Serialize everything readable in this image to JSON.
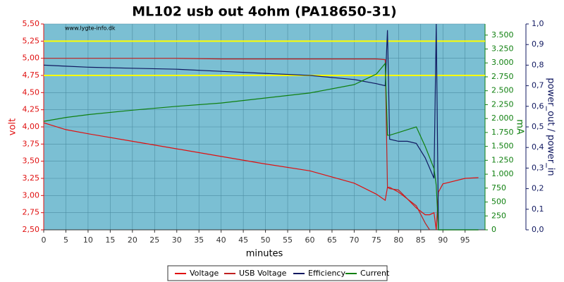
{
  "chart_data": {
    "type": "line",
    "title": "ML102 usb out 4ohm (PA18650-31)",
    "watermark": "www.lygte-info.dk",
    "xlabel": "minutes",
    "ylabel": "volt",
    "y2label": "mA",
    "y3label": "power_out / power_in",
    "background": "#7bbfd3",
    "grid": true,
    "legend": "bottom",
    "xlim": [
      0,
      99.5
    ],
    "xticks": [
      0,
      5,
      10,
      15,
      20,
      25,
      30,
      35,
      40,
      45,
      50,
      55,
      60,
      65,
      70,
      75,
      80,
      85,
      90,
      95
    ],
    "ylim": [
      2.5,
      5.5
    ],
    "yticks": [
      {
        "value": 2.5,
        "label": "2,50"
      },
      {
        "value": 2.75,
        "label": "2,75"
      },
      {
        "value": 3,
        "label": "3,00"
      },
      {
        "value": 3.25,
        "label": "3,25"
      },
      {
        "value": 3.5,
        "label": "3,50"
      },
      {
        "value": 3.75,
        "label": "3,75"
      },
      {
        "value": 4,
        "label": "4,00"
      },
      {
        "value": 4.25,
        "label": "4,25"
      },
      {
        "value": 4.5,
        "label": "4,50"
      },
      {
        "value": 4.75,
        "label": "4,75"
      },
      {
        "value": 5,
        "label": "5,00"
      },
      {
        "value": 5.25,
        "label": "5,25"
      },
      {
        "value": 5.5,
        "label": "5,50"
      }
    ],
    "y2lim": [
      0,
      3700
    ],
    "y2ticks": [
      0,
      250,
      500,
      750,
      {
        "value": 1000,
        "label": "1.000"
      },
      {
        "value": 1250,
        "label": "1.250"
      },
      {
        "value": 1500,
        "label": "1.500"
      },
      {
        "value": 1750,
        "label": "1.750"
      },
      {
        "value": 2000,
        "label": "2.000"
      },
      {
        "value": 2250,
        "label": "2.250"
      },
      {
        "value": 2500,
        "label": "2.500"
      },
      {
        "value": 2750,
        "label": "2.750"
      },
      {
        "value": 3000,
        "label": "3.000"
      },
      {
        "value": 3250,
        "label": "3.250"
      },
      {
        "value": 3500,
        "label": "3.500"
      }
    ],
    "y3lim": [
      0,
      1
    ],
    "y3ticks": [
      {
        "value": 0,
        "label": "0,0"
      },
      {
        "value": 0.1,
        "label": "0,1"
      },
      {
        "value": 0.2,
        "label": "0,2"
      },
      {
        "value": 0.3,
        "label": "0,3"
      },
      {
        "value": 0.4,
        "label": "0,4"
      },
      {
        "value": 0.5,
        "label": "0,5"
      },
      {
        "value": 0.6,
        "label": "0,6"
      },
      {
        "value": 0.7,
        "label": "0,7"
      },
      {
        "value": 0.8,
        "label": "0,8"
      },
      {
        "value": 0.9,
        "label": "0,9"
      },
      {
        "value": 1,
        "label": "1,0"
      }
    ],
    "reference_lines": {
      "color": "#ffff00",
      "values": [
        4.75,
        5.25
      ]
    },
    "x": [
      0,
      5,
      10,
      20,
      30,
      40,
      50,
      60,
      70,
      75,
      77,
      77.5,
      78,
      80,
      82,
      84,
      86,
      87,
      88,
      88.5,
      89,
      90,
      95,
      98
    ],
    "series": [
      {
        "name": "Voltage",
        "color": "#e01010",
        "axis": "y",
        "values": [
          4.06,
          3.96,
          3.9,
          3.79,
          3.68,
          3.57,
          3.46,
          3.36,
          3.18,
          3.02,
          2.93,
          3.12,
          3.12,
          3.05,
          2.95,
          2.82,
          2.72,
          2.72,
          2.75,
          2.5,
          3.05,
          3.17,
          3.25,
          3.26
        ]
      },
      {
        "name": "USB Voltage",
        "color": "#c02020",
        "axis": "y",
        "values": [
          5.0,
          5.0,
          5.0,
          5.0,
          5.0,
          4.99,
          4.99,
          4.99,
          4.99,
          4.99,
          4.98,
          3.12,
          3.1,
          3.08,
          2.95,
          2.85,
          2.6,
          2.5,
          null,
          null,
          null,
          null,
          null,
          null
        ]
      },
      {
        "name": "Efficiency",
        "color": "#101860",
        "axis": "y3",
        "values": [
          0.8,
          0.795,
          0.79,
          0.785,
          0.78,
          0.77,
          0.76,
          0.75,
          0.73,
          0.71,
          0.7,
          0.97,
          0.44,
          0.43,
          0.43,
          0.42,
          0.35,
          0.3,
          0.25,
          1.0,
          0.0,
          0.0,
          0.0,
          0.0
        ]
      },
      {
        "name": "Current",
        "color": "#108010",
        "axis": "y2",
        "values": [
          1950,
          2020,
          2070,
          2150,
          2220,
          2280,
          2370,
          2460,
          2610,
          2800,
          2990,
          1700,
          1700,
          1750,
          1800,
          1850,
          1500,
          1300,
          1100,
          800,
          0,
          0,
          0,
          0
        ]
      }
    ]
  }
}
